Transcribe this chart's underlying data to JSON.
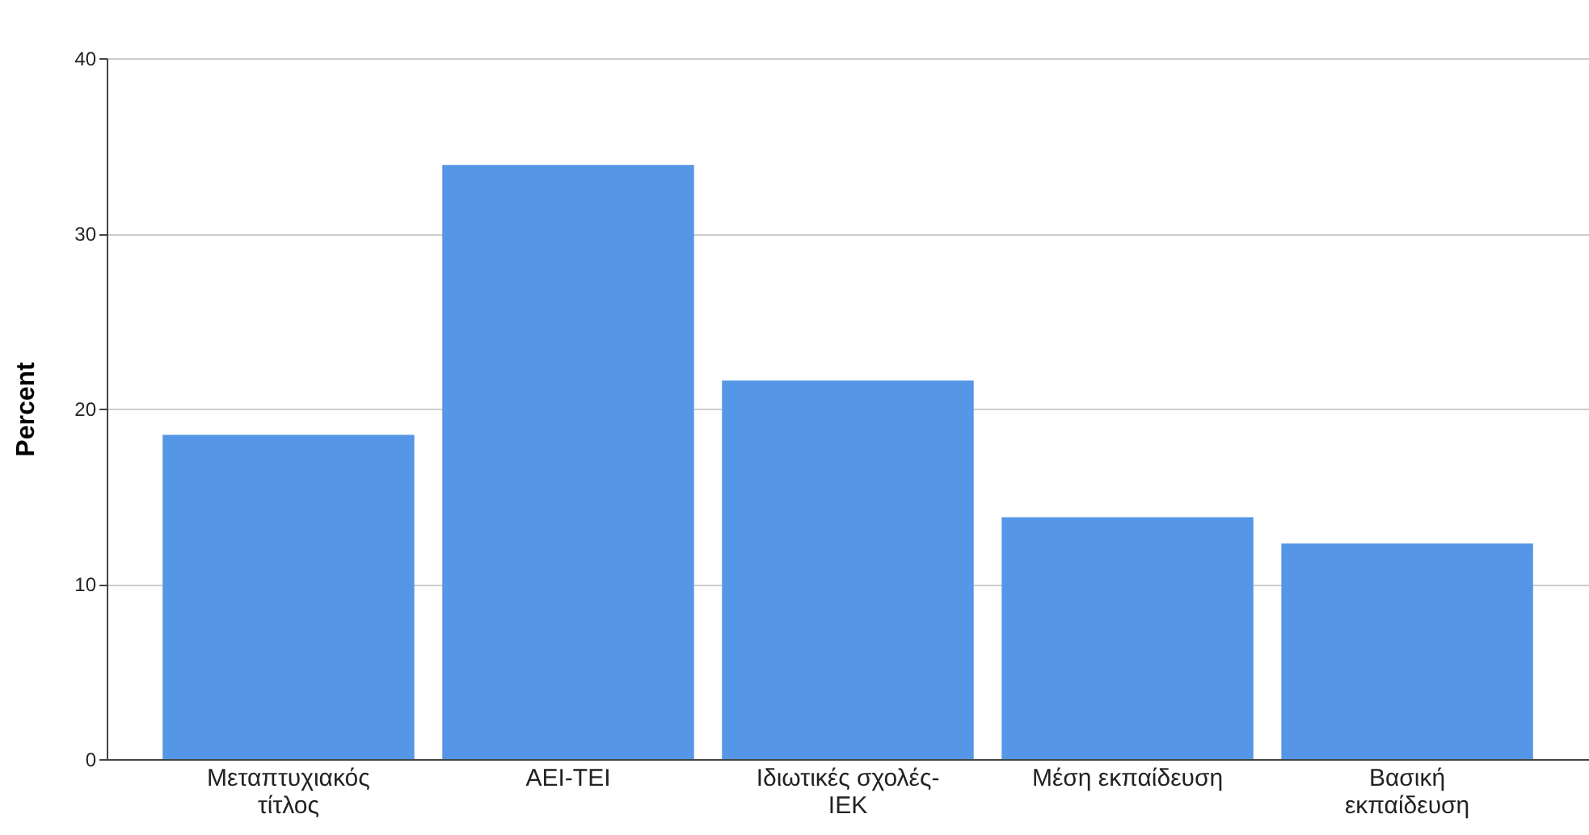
{
  "chart_data": {
    "type": "bar",
    "ylabel": "Percent",
    "categories": [
      "Μεταπτυχιακός τίτλος",
      "ΑΕΙ-ΤΕΙ",
      "Ιδιωτικές σχολές-ΙΕΚ",
      "Μέση εκπαίδευση",
      "Βασική εκπαίδευση"
    ],
    "values": [
      18.5,
      33.9,
      21.6,
      13.8,
      12.3
    ],
    "color": "#5596e6",
    "ylim": [
      0,
      40
    ],
    "yticks": [
      0,
      10,
      20,
      30,
      40
    ],
    "grid": "y"
  }
}
